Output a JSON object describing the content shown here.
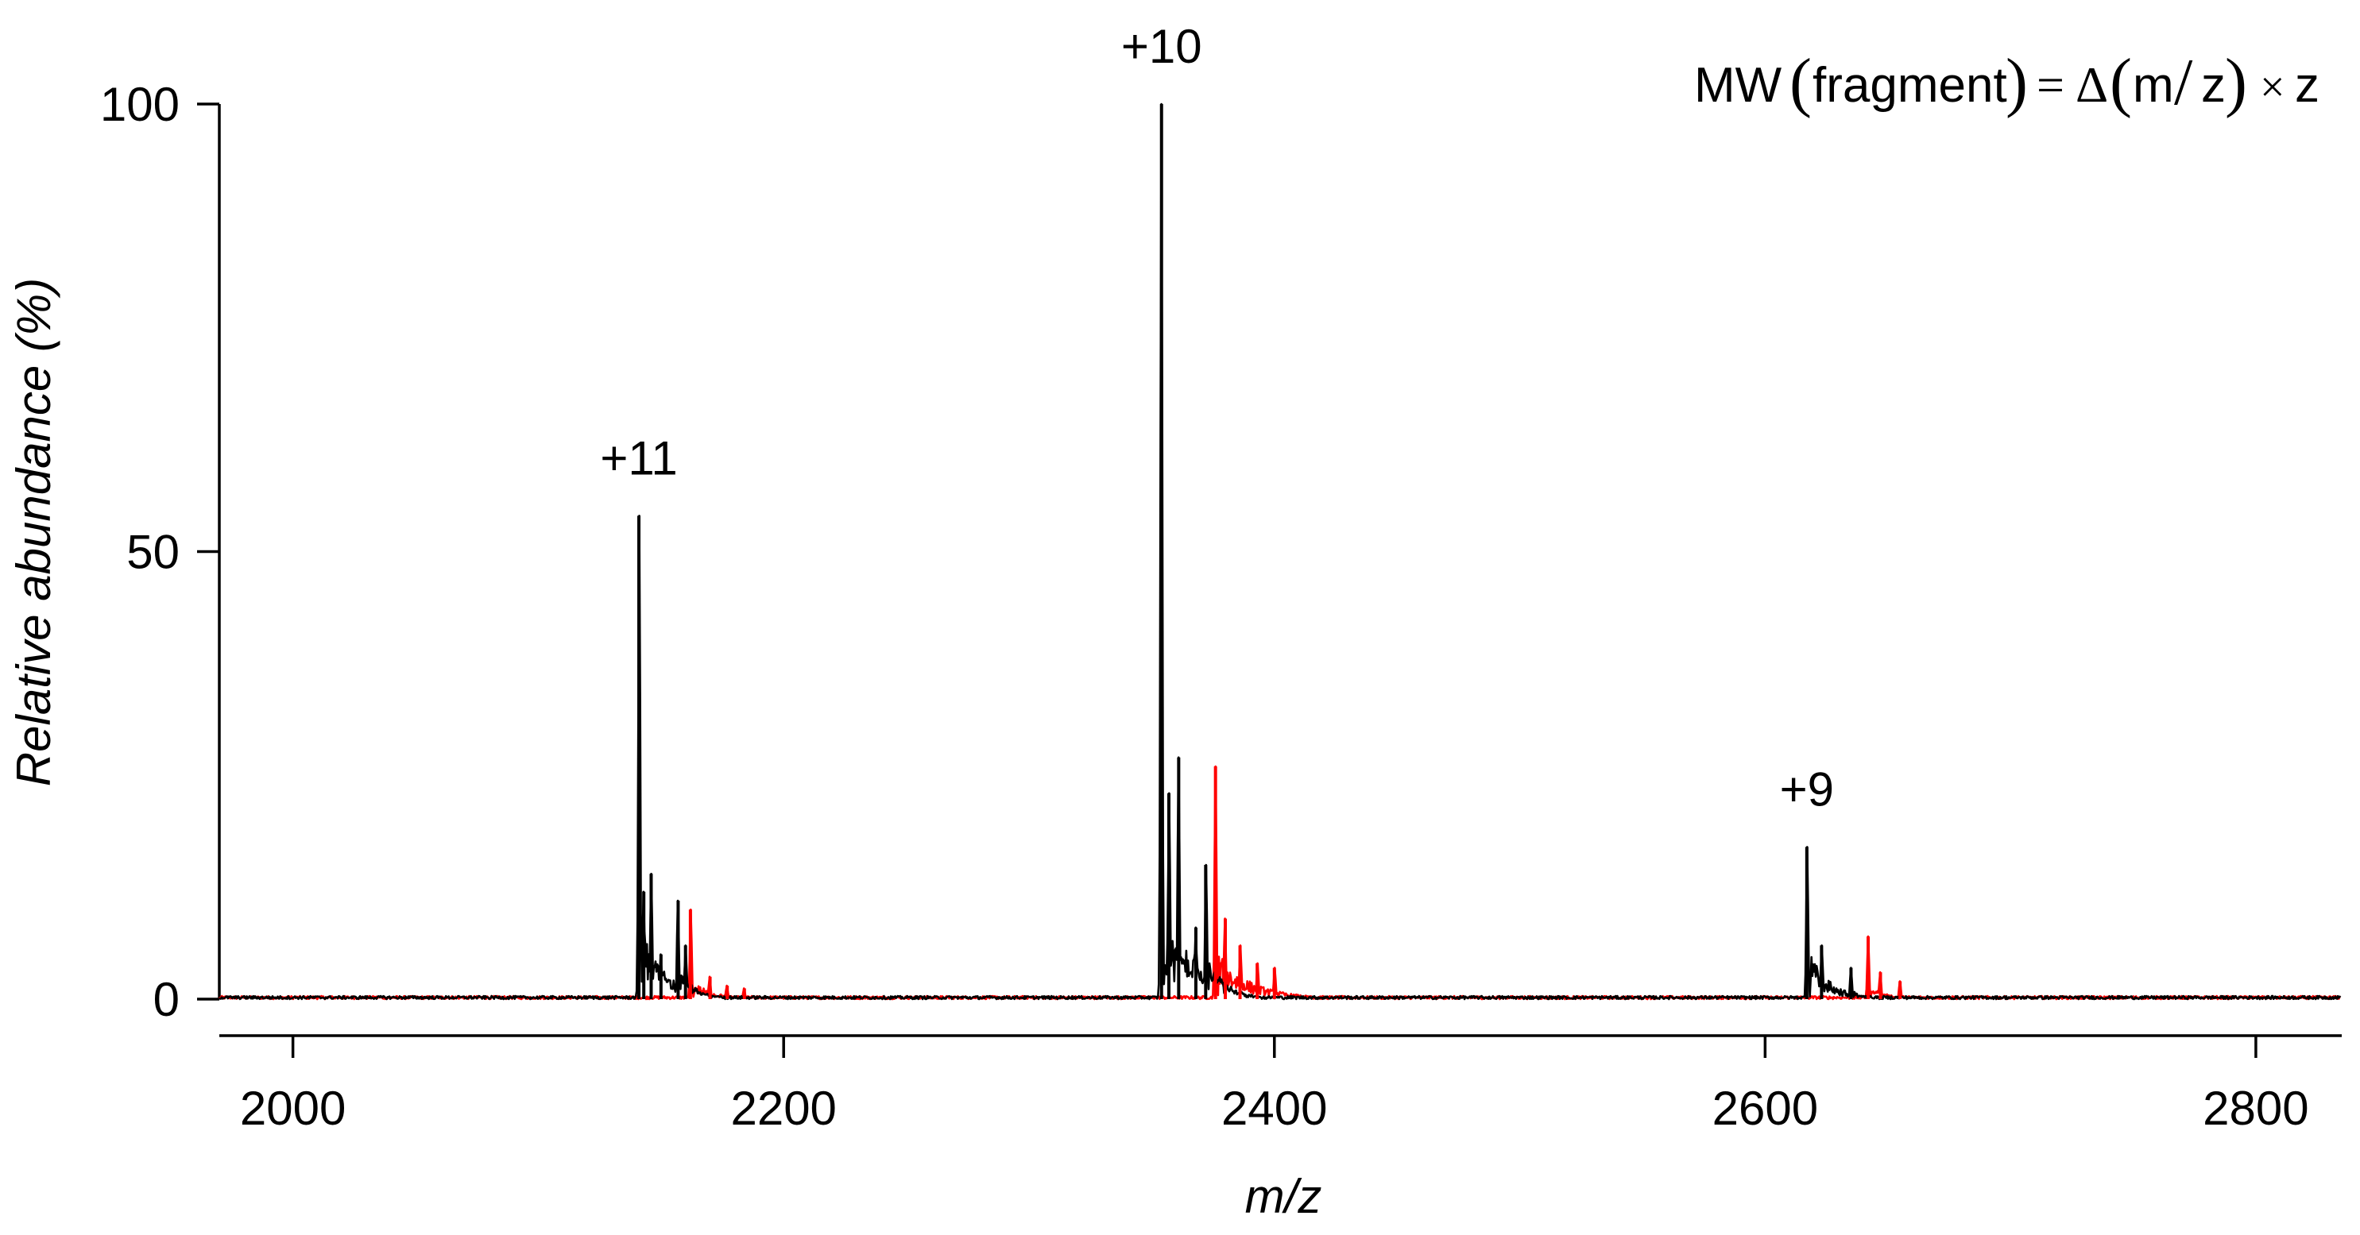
{
  "chart_data": {
    "type": "line",
    "title": "",
    "xlabel": "m/z",
    "ylabel": "Relative abundance (%)",
    "xlim": [
      1970,
      2835
    ],
    "ylim": [
      0,
      100
    ],
    "x_ticks": [
      2000,
      2200,
      2400,
      2600,
      2800
    ],
    "y_ticks": [
      0,
      50,
      100
    ],
    "grid": false,
    "colors": {
      "black_trace": "#000000",
      "red_trace": "#ff0000"
    },
    "series": [
      {
        "name": "black spectrum",
        "color": "#000000",
        "peaks": [
          {
            "x": 2141,
            "y": 54
          },
          {
            "x": 2143,
            "y": 12
          },
          {
            "x": 2146,
            "y": 14
          },
          {
            "x": 2150,
            "y": 5
          },
          {
            "x": 2157,
            "y": 11
          },
          {
            "x": 2160,
            "y": 6
          },
          {
            "x": 2354,
            "y": 100
          },
          {
            "x": 2357,
            "y": 23
          },
          {
            "x": 2361,
            "y": 27
          },
          {
            "x": 2368,
            "y": 8
          },
          {
            "x": 2372,
            "y": 15
          },
          {
            "x": 2617,
            "y": 17
          },
          {
            "x": 2623,
            "y": 6
          },
          {
            "x": 2635,
            "y": 3.5
          }
        ]
      },
      {
        "name": "red spectrum",
        "color": "#ff0000",
        "peaks": [
          {
            "x": 2162,
            "y": 10
          },
          {
            "x": 2170,
            "y": 2.5
          },
          {
            "x": 2177,
            "y": 1.5
          },
          {
            "x": 2184,
            "y": 1.2
          },
          {
            "x": 2376,
            "y": 26
          },
          {
            "x": 2380,
            "y": 9
          },
          {
            "x": 2386,
            "y": 6
          },
          {
            "x": 2393,
            "y": 4
          },
          {
            "x": 2400,
            "y": 3.5
          },
          {
            "x": 2642,
            "y": 7
          },
          {
            "x": 2647,
            "y": 3
          },
          {
            "x": 2655,
            "y": 2
          }
        ]
      }
    ],
    "annotations": [
      {
        "text": "+11",
        "x": 2141,
        "y": 54
      },
      {
        "text": "+10",
        "x": 2354,
        "y": 100
      },
      {
        "text": "+9",
        "x": 2617,
        "y": 17
      }
    ],
    "formula": {
      "lhs": "MW",
      "open_paren": "(",
      "arg": "fragment",
      "close_paren": ")",
      "equals": "=",
      "delta": "Δ",
      "numerator": "m",
      "slash": "/",
      "denominator": "z",
      "times": "×",
      "factor": "z"
    }
  }
}
